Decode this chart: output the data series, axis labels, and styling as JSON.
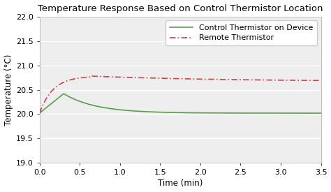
{
  "title": "Temperature Response Based on Control Thermistor Location",
  "xlabel": "Time (min)",
  "ylabel": "Temperature (°C)",
  "xlim": [
    0.0,
    3.5
  ],
  "ylim": [
    19.0,
    22.0
  ],
  "xticks": [
    0.0,
    0.5,
    1.0,
    1.5,
    2.0,
    2.5,
    3.0,
    3.5
  ],
  "yticks": [
    19.0,
    19.5,
    20.0,
    20.5,
    21.0,
    21.5,
    22.0
  ],
  "line1_label": "Control Thermistor on Device",
  "line1_color": "#5a9e4a",
  "line2_label": "Remote Thermistor",
  "line2_color": "#cc4444",
  "background_color": "#ffffff",
  "plot_bg_color": "#eeeeee",
  "grid_color": "#ffffff",
  "title_fontsize": 9.5,
  "label_fontsize": 8.5,
  "tick_fontsize": 8,
  "legend_fontsize": 8
}
